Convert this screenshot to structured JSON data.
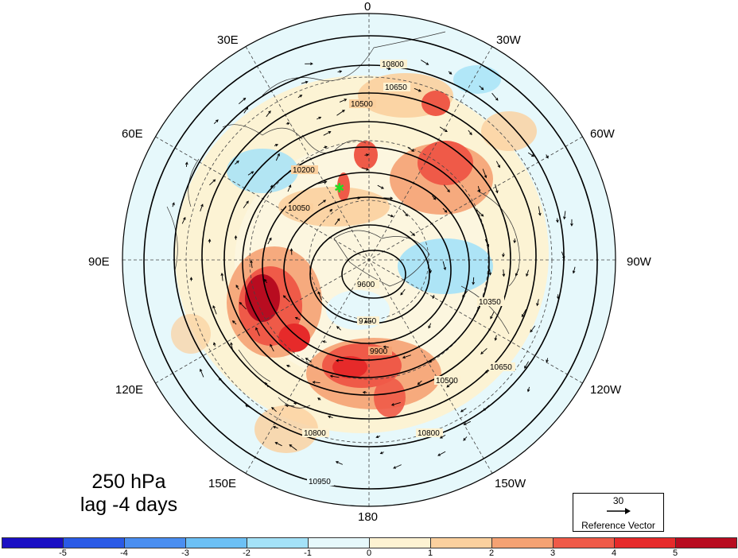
{
  "title": {
    "level": "250 hPa",
    "lag": "lag -4 days"
  },
  "longitude_labels": [
    "0",
    "30W",
    "60W",
    "90W",
    "120W",
    "150W",
    "180",
    "150E",
    "120E",
    "90E",
    "60E",
    "30E"
  ],
  "contour_labels": [
    "9600",
    "9750",
    "9900",
    "10050",
    "10200",
    "10350",
    "10500",
    "10650",
    "10800",
    "10950"
  ],
  "reference_vector": {
    "value": "30",
    "label": "Reference Vector"
  },
  "colorbar": {
    "ticks": [
      "-5",
      "-4",
      "-3",
      "-2",
      "-1",
      "0",
      "1",
      "2",
      "3",
      "4",
      "5"
    ],
    "colors": [
      "#1a0fc4",
      "#2a5ae6",
      "#4a8ef0",
      "#6cc0f5",
      "#a4e2f8",
      "#e6f8fb",
      "#fdf2d2",
      "#fbd09e",
      "#f5a273",
      "#ef5a48",
      "#e62a2a",
      "#b80c20"
    ]
  },
  "map": {
    "projection": "north polar stereographic",
    "marker_color": "#22dd22"
  }
}
